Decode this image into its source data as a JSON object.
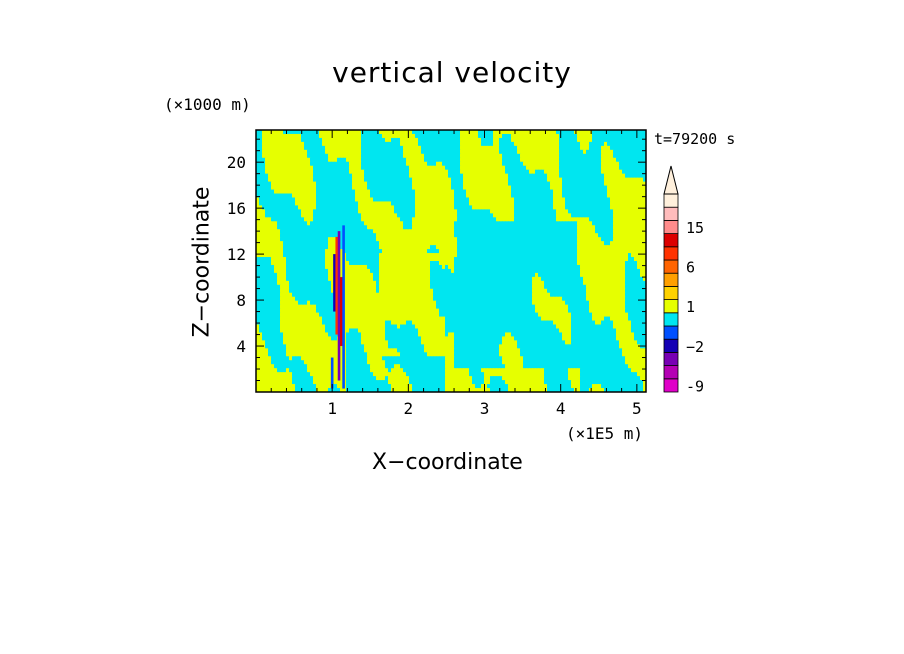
{
  "chart_data": {
    "type": "heatmap",
    "title": "vertical velocity",
    "time_label": "t=79200 s",
    "x_axis": {
      "label": "X−coordinate",
      "unit_label": "(×1E5 m)",
      "range": [
        0.0,
        5.12
      ],
      "ticks": [
        1,
        2,
        3,
        4,
        5
      ],
      "tick_labels": [
        "1",
        "2",
        "3",
        "4",
        "5"
      ]
    },
    "y_axis": {
      "label": "Z−coordinate",
      "unit_label": "(×1000 m)",
      "range": [
        0.0,
        22.8
      ],
      "ticks": [
        4,
        8,
        12,
        16,
        20
      ],
      "tick_labels": [
        "4",
        "8",
        "12",
        "16",
        "20"
      ]
    },
    "colorbar": {
      "levels": [
        -9,
        -6,
        -4,
        -2,
        -1,
        0,
        1,
        2,
        4,
        6,
        9,
        12,
        15,
        18,
        21
      ],
      "level_labels": [
        "-9",
        "−2",
        "1",
        "6",
        "15"
      ],
      "colors": [
        "#e000c8",
        "#b400b4",
        "#7800b4",
        "#1400b4",
        "#0050ff",
        "#00e6f0",
        "#e6ff00",
        "#ffd200",
        "#ffa000",
        "#ff6400",
        "#ff3200",
        "#dc0000",
        "#ff8c8c",
        "#ffbcbc",
        "#fff0dc"
      ],
      "extend": "max"
    },
    "field": {
      "dominant_colors": [
        "#00e6f0",
        "#e6ff00"
      ],
      "strong_updraft_x": 1.08,
      "strong_updraft_z_range": [
        0.3,
        14.5
      ]
    }
  }
}
